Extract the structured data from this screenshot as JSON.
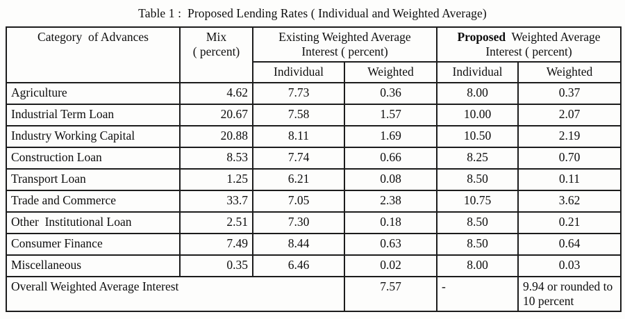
{
  "page": {
    "title": "Table 1 :  Proposed Lending Rates ( Individual and Weighted Average)"
  },
  "table": {
    "header": {
      "category": "Category  of Advances",
      "mix": "Mix\n( percent)",
      "existing_group": "Existing Weighted Average\nInterest ( percent)",
      "proposed_word": "Proposed",
      "proposed_rest": "  Weighted Average\nInterest ( percent)",
      "sub_individual": "Individual",
      "sub_weighted": "Weighted"
    },
    "rows": [
      {
        "category": "Agriculture",
        "mix": "4.62",
        "existing_individual": "7.73",
        "existing_weighted": "0.36",
        "proposed_individual": "8.00",
        "proposed_weighted": "0.37"
      },
      {
        "category": "Industrial Term Loan",
        "mix": "20.67",
        "existing_individual": "7.58",
        "existing_weighted": "1.57",
        "proposed_individual": "10.00",
        "proposed_weighted": "2.07"
      },
      {
        "category": "Industry Working Capital",
        "mix": "20.88",
        "existing_individual": "8.11",
        "existing_weighted": "1.69",
        "proposed_individual": "10.50",
        "proposed_weighted": "2.19"
      },
      {
        "category": "Construction Loan",
        "mix": "8.53",
        "existing_individual": "7.74",
        "existing_weighted": "0.66",
        "proposed_individual": "8.25",
        "proposed_weighted": "0.70"
      },
      {
        "category": "Transport Loan",
        "mix": "1.25",
        "existing_individual": "6.21",
        "existing_weighted": "0.08",
        "proposed_individual": "8.50",
        "proposed_weighted": "0.11"
      },
      {
        "category": "Trade and Commerce",
        "mix": "33.7",
        "existing_individual": "7.05",
        "existing_weighted": "2.38",
        "proposed_individual": "10.75",
        "proposed_weighted": "3.62"
      },
      {
        "category": "Other  Institutional Loan",
        "mix": "2.51",
        "existing_individual": "7.30",
        "existing_weighted": "0.18",
        "proposed_individual": "8.50",
        "proposed_weighted": "0.21"
      },
      {
        "category": "Consumer Finance",
        "mix": "7.49",
        "existing_individual": "8.44",
        "existing_weighted": "0.63",
        "proposed_individual": "8.50",
        "proposed_weighted": "0.64"
      },
      {
        "category": "Miscellaneous",
        "mix": "0.35",
        "existing_individual": "6.46",
        "existing_weighted": "0.02",
        "proposed_individual": "8.00",
        "proposed_weighted": "0.03"
      }
    ],
    "footer": {
      "label": "Overall Weighted Average Interest",
      "existing_weighted": "7.57",
      "proposed_individual": "-",
      "proposed_weighted": "9.94 or rounded to 10 percent"
    }
  }
}
